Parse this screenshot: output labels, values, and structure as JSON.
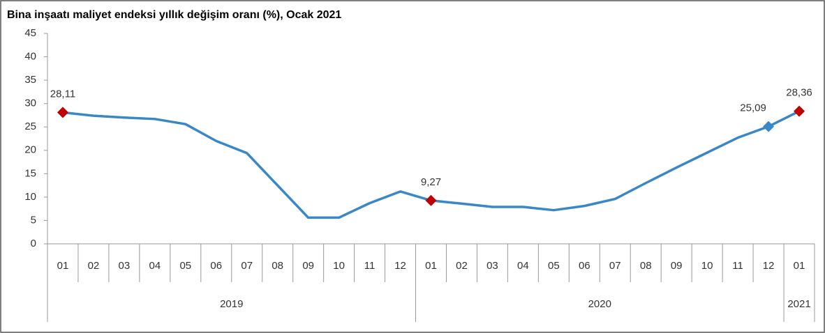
{
  "chart_data": {
    "type": "line",
    "title": "Bina inşaatı maliyet endeksi yıllık değişim oranı (%), Ocak 2021",
    "categories": [
      "01",
      "02",
      "03",
      "04",
      "05",
      "06",
      "07",
      "08",
      "09",
      "10",
      "11",
      "12",
      "01",
      "02",
      "03",
      "04",
      "05",
      "06",
      "07",
      "08",
      "09",
      "10",
      "11",
      "12",
      "01"
    ],
    "category_groups": [
      {
        "name": "2019",
        "count": 12
      },
      {
        "name": "2020",
        "count": 12
      },
      {
        "name": "2021",
        "count": 1
      }
    ],
    "series": [
      {
        "name": "Yıllık değişim",
        "color": "#3a87c8",
        "values": [
          28.11,
          27.4,
          27.0,
          26.7,
          25.6,
          22.0,
          19.4,
          12.5,
          5.6,
          5.6,
          8.7,
          11.2,
          9.27,
          8.6,
          7.9,
          7.9,
          7.2,
          8.1,
          9.6,
          13.0,
          16.3,
          19.5,
          22.7,
          25.09,
          28.36
        ],
        "value_labels": [
          "28,11",
          null,
          null,
          null,
          null,
          null,
          null,
          null,
          null,
          null,
          null,
          null,
          "9,27",
          null,
          null,
          null,
          null,
          null,
          null,
          null,
          null,
          null,
          null,
          "25,09",
          "28,36"
        ],
        "marker_colors": [
          "#c00000",
          null,
          null,
          null,
          null,
          null,
          null,
          null,
          null,
          null,
          null,
          null,
          "#c00000",
          null,
          null,
          null,
          null,
          null,
          null,
          null,
          null,
          null,
          null,
          "#3a87c8",
          "#c00000"
        ]
      }
    ],
    "ylim": [
      0,
      45
    ],
    "yticks": [
      0,
      5,
      10,
      15,
      20,
      25,
      30,
      35,
      40,
      45
    ],
    "grid": false
  }
}
